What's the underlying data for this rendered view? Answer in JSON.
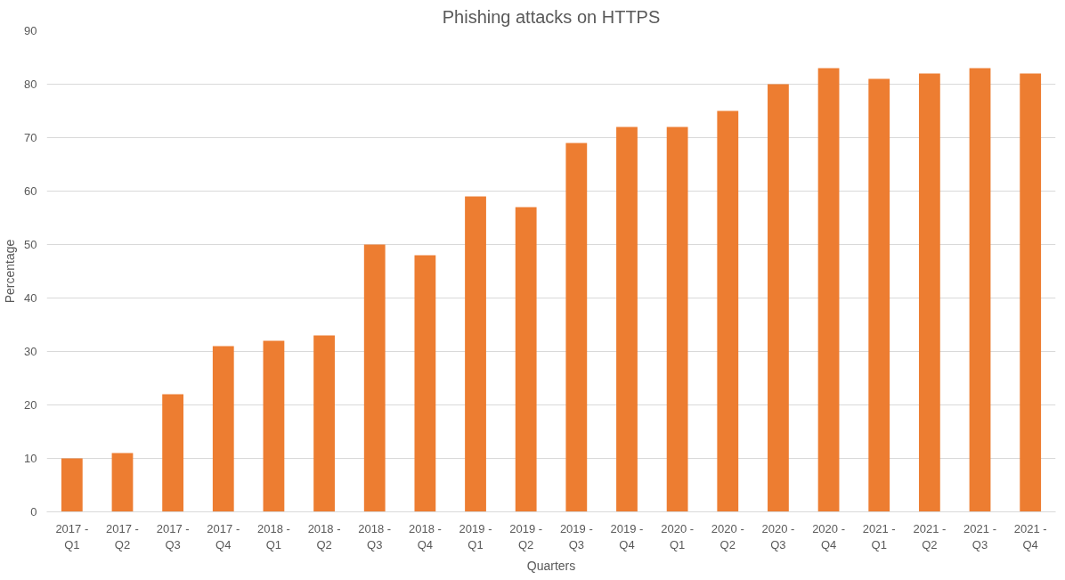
{
  "chart_data": {
    "type": "bar",
    "title": "Phishing attacks on HTTPS",
    "xlabel": "Quarters",
    "ylabel": "Percentage",
    "categories": [
      "2017 - Q1",
      "2017 - Q2",
      "2017 - Q3",
      "2017 - Q4",
      "2018 - Q1",
      "2018 - Q2",
      "2018 - Q3",
      "2018 - Q4",
      "2019 - Q1",
      "2019 - Q2",
      "2019 - Q3",
      "2019 - Q4",
      "2020 - Q1",
      "2020 - Q2",
      "2020 - Q3",
      "2020 - Q4",
      "2021 - Q1",
      "2021 - Q2",
      "2021 - Q3",
      "2021 - Q4"
    ],
    "values": [
      10,
      11,
      22,
      31,
      32,
      33,
      50,
      48,
      59,
      57,
      69,
      72,
      72,
      75,
      80,
      83,
      81,
      82,
      83,
      82
    ],
    "color": "#ed7d31",
    "ylim": [
      0,
      90
    ],
    "yticks": [
      0,
      10,
      20,
      30,
      40,
      50,
      60,
      70,
      80,
      90
    ],
    "grid": "y"
  }
}
